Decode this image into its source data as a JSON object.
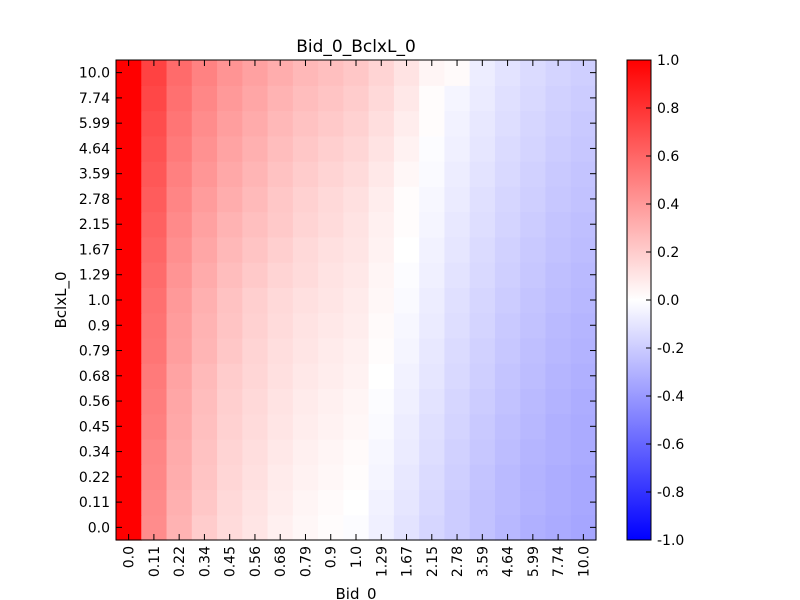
{
  "chart_data": {
    "type": "heatmap",
    "title": "Bid_0_BclxL_0",
    "xlabel": "Bid_0",
    "ylabel": "BclxL_0",
    "x_categories": [
      "0.0",
      "0.11",
      "0.22",
      "0.34",
      "0.45",
      "0.56",
      "0.68",
      "0.79",
      "0.9",
      "1.0",
      "1.29",
      "1.67",
      "2.15",
      "2.78",
      "3.59",
      "4.64",
      "5.99",
      "7.74",
      "10.0"
    ],
    "y_categories": [
      "0.0",
      "0.11",
      "0.22",
      "0.34",
      "0.45",
      "0.56",
      "0.68",
      "0.79",
      "0.9",
      "1.0",
      "1.29",
      "1.67",
      "2.15",
      "2.78",
      "3.59",
      "4.64",
      "5.99",
      "7.74",
      "10.0"
    ],
    "grid": false,
    "colormap": "bwr",
    "vmin": -1.0,
    "vmax": 1.0,
    "colorbar_ticks": [
      "-1.0",
      "-0.8",
      "-0.6",
      "-0.4",
      "-0.2",
      "0.0",
      "0.2",
      "0.4",
      "0.6",
      "0.8",
      "1.0"
    ],
    "colors": {
      "low": "#0000ff",
      "mid": "#ffffff",
      "high": "#ff0000"
    },
    "values": [
      [
        1.0,
        0.45,
        0.3,
        0.2,
        0.14,
        0.1,
        0.06,
        0.03,
        0.01,
        -0.01,
        -0.06,
        -0.11,
        -0.16,
        -0.2,
        -0.24,
        -0.28,
        -0.31,
        -0.33,
        -0.35
      ],
      [
        1.0,
        0.46,
        0.31,
        0.22,
        0.15,
        0.11,
        0.07,
        0.04,
        0.02,
        0.0,
        -0.05,
        -0.1,
        -0.15,
        -0.2,
        -0.24,
        -0.27,
        -0.3,
        -0.32,
        -0.34
      ],
      [
        1.0,
        0.47,
        0.32,
        0.23,
        0.16,
        0.12,
        0.08,
        0.05,
        0.03,
        0.01,
        -0.04,
        -0.09,
        -0.14,
        -0.19,
        -0.23,
        -0.27,
        -0.3,
        -0.32,
        -0.34
      ],
      [
        1.0,
        0.48,
        0.33,
        0.24,
        0.17,
        0.13,
        0.09,
        0.06,
        0.04,
        0.02,
        -0.03,
        -0.08,
        -0.13,
        -0.18,
        -0.22,
        -0.26,
        -0.29,
        -0.31,
        -0.33
      ],
      [
        1.0,
        0.5,
        0.34,
        0.25,
        0.18,
        0.14,
        0.1,
        0.07,
        0.05,
        0.03,
        -0.02,
        -0.07,
        -0.12,
        -0.17,
        -0.21,
        -0.25,
        -0.28,
        -0.31,
        -0.33
      ],
      [
        1.0,
        0.51,
        0.35,
        0.26,
        0.19,
        0.15,
        0.11,
        0.08,
        0.06,
        0.04,
        -0.01,
        -0.06,
        -0.11,
        -0.16,
        -0.2,
        -0.24,
        -0.27,
        -0.3,
        -0.32
      ],
      [
        1.0,
        0.52,
        0.36,
        0.27,
        0.2,
        0.16,
        0.12,
        0.09,
        0.07,
        0.05,
        0.0,
        -0.05,
        -0.1,
        -0.15,
        -0.19,
        -0.23,
        -0.26,
        -0.29,
        -0.31
      ],
      [
        1.0,
        0.54,
        0.38,
        0.29,
        0.22,
        0.17,
        0.13,
        0.1,
        0.08,
        0.06,
        0.01,
        -0.04,
        -0.09,
        -0.14,
        -0.18,
        -0.22,
        -0.25,
        -0.28,
        -0.3
      ],
      [
        1.0,
        0.55,
        0.39,
        0.3,
        0.23,
        0.18,
        0.14,
        0.11,
        0.09,
        0.07,
        0.02,
        -0.03,
        -0.08,
        -0.13,
        -0.17,
        -0.21,
        -0.24,
        -0.27,
        -0.29
      ],
      [
        1.0,
        0.56,
        0.4,
        0.31,
        0.24,
        0.19,
        0.15,
        0.12,
        0.1,
        0.08,
        0.03,
        -0.02,
        -0.07,
        -0.12,
        -0.16,
        -0.2,
        -0.23,
        -0.26,
        -0.28
      ],
      [
        1.0,
        0.58,
        0.42,
        0.33,
        0.26,
        0.21,
        0.17,
        0.14,
        0.11,
        0.09,
        0.04,
        -0.01,
        -0.06,
        -0.11,
        -0.15,
        -0.19,
        -0.22,
        -0.25,
        -0.27
      ],
      [
        1.0,
        0.6,
        0.44,
        0.35,
        0.28,
        0.23,
        0.19,
        0.15,
        0.12,
        0.1,
        0.05,
        0.0,
        -0.05,
        -0.1,
        -0.14,
        -0.18,
        -0.21,
        -0.24,
        -0.26
      ],
      [
        1.0,
        0.62,
        0.46,
        0.37,
        0.3,
        0.25,
        0.21,
        0.17,
        0.14,
        0.11,
        0.06,
        0.01,
        -0.04,
        -0.09,
        -0.13,
        -0.17,
        -0.2,
        -0.23,
        -0.25
      ],
      [
        1.0,
        0.64,
        0.48,
        0.39,
        0.32,
        0.27,
        0.22,
        0.18,
        0.15,
        0.12,
        0.07,
        0.01,
        -0.03,
        -0.08,
        -0.12,
        -0.16,
        -0.19,
        -0.22,
        -0.24
      ],
      [
        1.0,
        0.66,
        0.5,
        0.41,
        0.34,
        0.29,
        0.24,
        0.2,
        0.17,
        0.14,
        0.09,
        0.03,
        -0.02,
        -0.07,
        -0.11,
        -0.15,
        -0.18,
        -0.21,
        -0.23
      ],
      [
        1.0,
        0.68,
        0.52,
        0.43,
        0.36,
        0.31,
        0.26,
        0.22,
        0.19,
        0.16,
        0.11,
        0.05,
        -0.01,
        -0.06,
        -0.1,
        -0.14,
        -0.17,
        -0.2,
        -0.22
      ],
      [
        1.0,
        0.7,
        0.54,
        0.45,
        0.38,
        0.33,
        0.28,
        0.24,
        0.21,
        0.18,
        0.13,
        0.07,
        0.01,
        -0.05,
        -0.09,
        -0.13,
        -0.16,
        -0.19,
        -0.21
      ],
      [
        1.0,
        0.72,
        0.56,
        0.47,
        0.4,
        0.35,
        0.3,
        0.26,
        0.23,
        0.2,
        0.15,
        0.09,
        0.01,
        -0.04,
        -0.08,
        -0.12,
        -0.15,
        -0.18,
        -0.2
      ],
      [
        1.0,
        0.74,
        0.58,
        0.49,
        0.42,
        0.37,
        0.32,
        0.28,
        0.25,
        0.22,
        0.17,
        0.11,
        0.04,
        0.02,
        -0.07,
        -0.11,
        -0.14,
        -0.17,
        -0.19
      ]
    ]
  }
}
